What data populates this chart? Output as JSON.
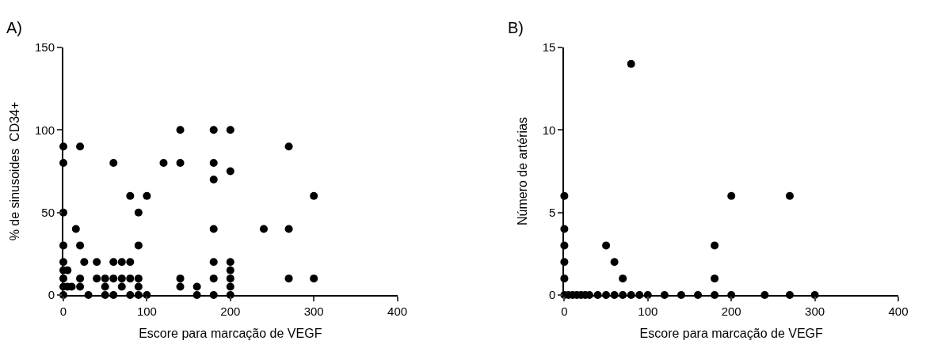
{
  "chart_data": [
    {
      "type": "scatter",
      "title": "A)",
      "xlabel": "Escore para marcação de VEGF",
      "ylabel": "% de sinusoides  CD34+",
      "xlim": [
        0,
        400
      ],
      "xticks": [
        0,
        100,
        200,
        300,
        400
      ],
      "ylim": [
        0,
        150
      ],
      "yticks": [
        0,
        50,
        100,
        150
      ],
      "marker": "circle",
      "series": [
        {
          "color": "#000000",
          "x": [
            0,
            0,
            0,
            0,
            0,
            0,
            0,
            0,
            0,
            5,
            5,
            10,
            15,
            20,
            20,
            20,
            20,
            25,
            30,
            40,
            40,
            50,
            50,
            50,
            60,
            60,
            60,
            60,
            70,
            70,
            70,
            80,
            80,
            80,
            80,
            90,
            90,
            90,
            90,
            90,
            100,
            100,
            120,
            140,
            140,
            140,
            140,
            160,
            160,
            180,
            180,
            180,
            180,
            180,
            180,
            180,
            200,
            200,
            200,
            200,
            200,
            200,
            200,
            240,
            270,
            270,
            270,
            300,
            300
          ],
          "values": [
            90,
            80,
            50,
            30,
            20,
            15,
            10,
            5,
            0,
            15,
            5,
            5,
            40,
            90,
            30,
            10,
            5,
            20,
            0,
            20,
            10,
            10,
            5,
            0,
            80,
            20,
            10,
            0,
            20,
            10,
            5,
            60,
            20,
            10,
            0,
            50,
            30,
            10,
            5,
            0,
            60,
            0,
            80,
            100,
            80,
            10,
            5,
            5,
            0,
            100,
            80,
            70,
            40,
            20,
            10,
            0,
            100,
            75,
            20,
            15,
            10,
            5,
            0,
            40,
            90,
            40,
            10,
            60,
            10
          ]
        }
      ]
    },
    {
      "type": "scatter",
      "title": "B)",
      "xlabel": "Escore para marcação de VEGF",
      "ylabel": "Número de artérias",
      "xlim": [
        0,
        400
      ],
      "xticks": [
        0,
        100,
        200,
        300,
        400
      ],
      "ylim": [
        0,
        15
      ],
      "yticks": [
        0,
        5,
        10,
        15
      ],
      "marker": "circle",
      "series": [
        {
          "color": "#000000",
          "x": [
            0,
            0,
            0,
            0,
            0,
            0,
            5,
            10,
            15,
            20,
            25,
            30,
            40,
            50,
            50,
            60,
            60,
            70,
            70,
            80,
            80,
            90,
            100,
            120,
            140,
            160,
            180,
            180,
            180,
            200,
            200,
            240,
            270,
            270,
            300
          ],
          "values": [
            6,
            4,
            3,
            2,
            1,
            0,
            0,
            0,
            0,
            0,
            0,
            0,
            0,
            3,
            0,
            2,
            0,
            1,
            0,
            14,
            0,
            0,
            0,
            0,
            0,
            0,
            3,
            1,
            0,
            6,
            0,
            0,
            6,
            0,
            0
          ]
        }
      ]
    }
  ]
}
